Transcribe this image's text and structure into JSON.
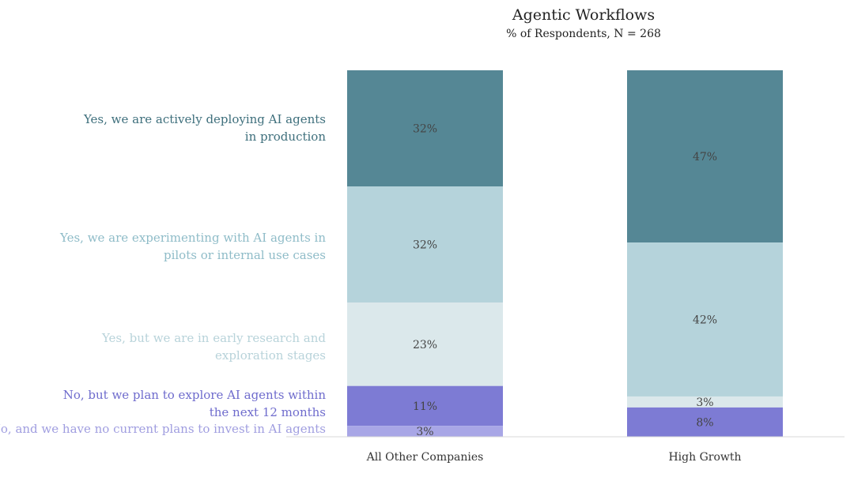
{
  "chart_data": {
    "type": "stacked-bar",
    "title": "Agentic Workflows",
    "subtitle": "% of Respondents, N = 268",
    "categories": [
      "All Other Companies",
      "High Growth"
    ],
    "ylim": [
      0,
      100
    ],
    "grid": false,
    "legend_position": "left",
    "series": [
      {
        "name": "Yes, we are actively deploying AI agents in production",
        "label_lines": [
          "Yes, we are actively deploying AI agents",
          "in production"
        ],
        "color": "#558795",
        "label_color": "#3e6f7c",
        "values": [
          32,
          47
        ]
      },
      {
        "name": "Yes, we are experimenting with AI agents in pilots or internal use cases",
        "label_lines": [
          "Yes, we are experimenting with AI agents in",
          "pilots or internal use cases"
        ],
        "color": "#b5d3db",
        "label_color": "#8fbcc8",
        "values": [
          32,
          42
        ]
      },
      {
        "name": "Yes, but we are in early research and exploration stages",
        "label_lines": [
          "Yes, but we are in early research and",
          "exploration stages"
        ],
        "color": "#dbe8eb",
        "label_color": "#b8d3da",
        "values": [
          23,
          3
        ]
      },
      {
        "name": "No, but we plan to explore AI agents within the next 12 months",
        "label_lines": [
          "No, but we plan to explore AI agents within",
          "the next 12 months"
        ],
        "color": "#7d7bd4",
        "label_color": "#6f6ccd",
        "values": [
          11,
          8
        ]
      },
      {
        "name": "No, and we have no current plans to invest in AI agents",
        "label_lines": [
          "No, and we have no current plans to invest in AI agents"
        ],
        "color": "#a8a6e6",
        "label_color": "#a09ee0",
        "values": [
          3,
          0
        ]
      }
    ],
    "data_labels": [
      [
        "32%",
        "32%",
        "23%",
        "11%",
        "3%"
      ],
      [
        "47%",
        "42%",
        "3%",
        "8%",
        ""
      ]
    ]
  }
}
